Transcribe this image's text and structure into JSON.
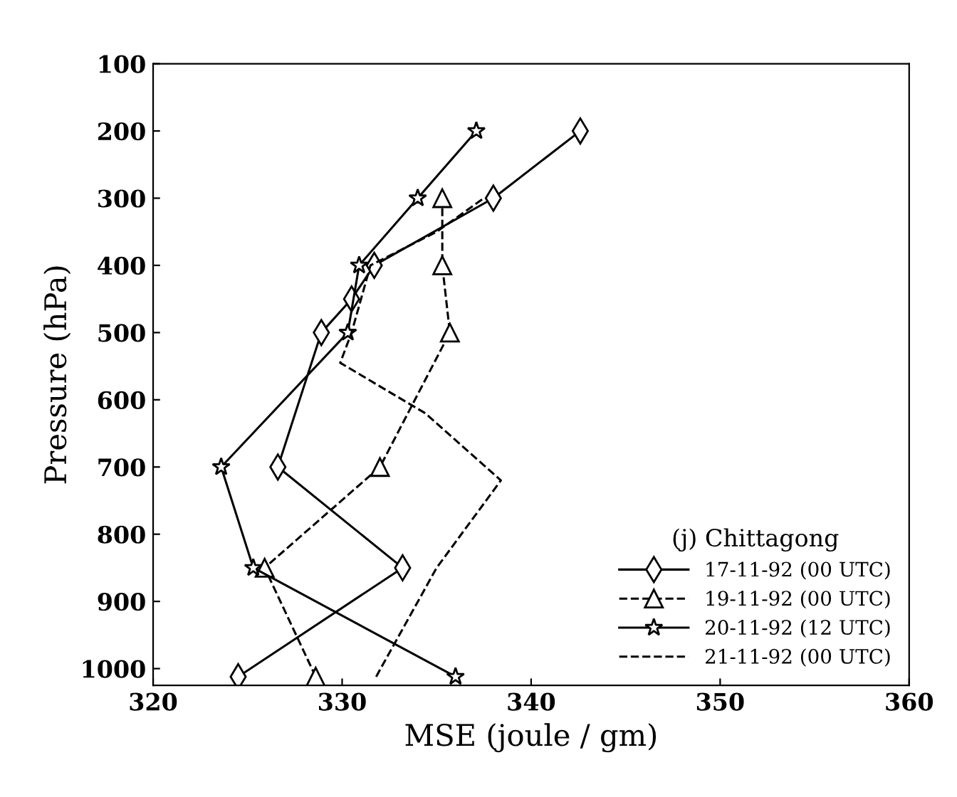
{
  "chart_data": {
    "type": "line",
    "xlabel": "MSE (joule / gm)",
    "ylabel": "Pressure (hPa)",
    "legend_title": "(j) Chittagong",
    "legend": "bottom right",
    "grid": false,
    "xlim": [
      320,
      360
    ],
    "xticks": [
      320,
      330,
      340,
      350,
      360
    ],
    "ylim": [
      1025,
      100
    ],
    "yticks": [
      100,
      200,
      300,
      400,
      500,
      600,
      700,
      800,
      900,
      1000
    ],
    "series": [
      {
        "name": "17-11-92 (00 UTC)",
        "color": "#000000",
        "marker": "diamond",
        "line_style": "solid",
        "x": [
          324.5,
          333.2,
          326.6,
          328.9,
          330.5,
          331.7,
          338.0,
          342.6
        ],
        "values": [
          1012,
          850,
          700,
          500,
          450,
          400,
          300,
          200
        ]
      },
      {
        "name": "19-11-92 (00 UTC)",
        "color": "#000000",
        "marker": "triangle",
        "line_style": "dashed",
        "x": [
          328.6,
          325.9,
          332.0,
          335.7,
          335.3,
          335.3
        ],
        "values": [
          1012,
          850,
          700,
          500,
          400,
          300
        ]
      },
      {
        "name": "20-11-92 (12 UTC)",
        "color": "#000000",
        "marker": "star",
        "line_style": "solid",
        "x": [
          336.0,
          325.3,
          323.6,
          330.3,
          330.9,
          334.0,
          337.1
        ],
        "values": [
          1012,
          850,
          700,
          500,
          400,
          300,
          200
        ]
      },
      {
        "name": "21-11-92 (00 UTC)",
        "color": "#000000",
        "marker": "none",
        "line_style": "dashed",
        "x": [
          331.8,
          335.0,
          338.4,
          334.4,
          329.9,
          330.5,
          331.5,
          335.0,
          337.5
        ],
        "values": [
          1012,
          850,
          720,
          620,
          545,
          500,
          400,
          350,
          300
        ]
      }
    ]
  }
}
